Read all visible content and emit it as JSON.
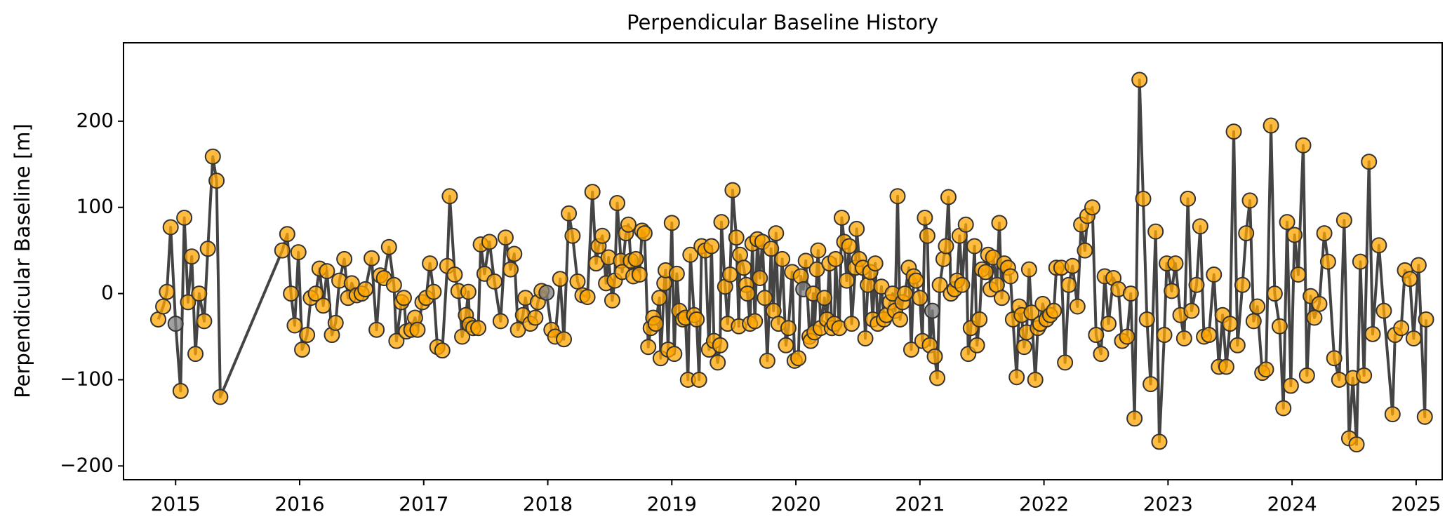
{
  "chart_data": {
    "type": "line",
    "title": "Perpendicular Baseline History",
    "ylabel": "Perpendicular Baseline [m]",
    "xlim": [
      2014.58,
      2025.21
    ],
    "ylim": [
      -216,
      291
    ],
    "xticks": [
      2015,
      2016,
      2017,
      2018,
      2019,
      2020,
      2021,
      2022,
      2023,
      2024,
      2025
    ],
    "yticks": [
      {
        "value": -200,
        "label": "−200"
      },
      {
        "value": -100,
        "label": "−100"
      },
      0,
      100,
      200
    ],
    "grid": false,
    "series": [
      {
        "line_color": "#444444",
        "marker_edge_color": "#333333",
        "x": [
          2014.86,
          2014.9,
          2014.93,
          2014.96,
          2015.0,
          2015.04,
          2015.07,
          2015.1,
          2015.13,
          2015.16,
          2015.19,
          2015.23,
          2015.26,
          2015.3,
          2015.33,
          2015.36,
          2015.86,
          2015.9,
          2015.93,
          2015.96,
          2015.99,
          2016.02,
          2016.06,
          2016.09,
          2016.13,
          2016.16,
          2016.19,
          2016.22,
          2016.26,
          2016.29,
          2016.32,
          2016.36,
          2016.39,
          2016.42,
          2016.46,
          2016.5,
          2016.53,
          2016.58,
          2016.62,
          2016.65,
          2016.68,
          2016.72,
          2016.76,
          2016.78,
          2016.82,
          2016.84,
          2016.86,
          2016.9,
          2016.93,
          2016.95,
          2016.99,
          2017.02,
          2017.05,
          2017.08,
          2017.11,
          2017.15,
          2017.19,
          2017.21,
          2017.25,
          2017.28,
          2017.31,
          2017.34,
          2017.36,
          2017.37,
          2017.4,
          2017.44,
          2017.46,
          2017.49,
          2017.53,
          2017.57,
          2017.62,
          2017.66,
          2017.7,
          2017.73,
          2017.76,
          2017.8,
          2017.82,
          2017.86,
          2017.9,
          2017.92,
          2017.95,
          2017.99,
          2018.03,
          2018.06,
          2018.1,
          2018.13,
          2018.17,
          2018.2,
          2018.24,
          2018.28,
          2018.32,
          2018.36,
          2018.39,
          2018.41,
          2018.44,
          2018.47,
          2018.49,
          2018.52,
          2018.54,
          2018.56,
          2018.59,
          2018.6,
          2018.63,
          2018.65,
          2018.67,
          2018.69,
          2018.71,
          2018.74,
          2018.76,
          2018.78,
          2018.81,
          2018.83,
          2018.85,
          2018.87,
          2018.9,
          2018.91,
          2018.94,
          2018.95,
          2018.97,
          2019.0,
          2019.02,
          2019.04,
          2019.06,
          2019.09,
          2019.11,
          2019.13,
          2019.15,
          2019.18,
          2019.2,
          2019.22,
          2019.24,
          2019.27,
          2019.3,
          2019.32,
          2019.34,
          2019.37,
          2019.39,
          2019.4,
          2019.43,
          2019.45,
          2019.47,
          2019.49,
          2019.52,
          2019.54,
          2019.55,
          2019.58,
          2019.6,
          2019.61,
          2019.63,
          2019.65,
          2019.67,
          2019.69,
          2019.71,
          2019.73,
          2019.75,
          2019.77,
          2019.8,
          2019.82,
          2019.84,
          2019.86,
          2019.89,
          2019.92,
          2019.94,
          2019.97,
          2019.99,
          2020.02,
          2020.04,
          2020.06,
          2020.08,
          2020.11,
          2020.12,
          2020.14,
          2020.15,
          2020.17,
          2020.18,
          2020.2,
          2020.23,
          2020.25,
          2020.27,
          2020.29,
          2020.31,
          2020.32,
          2020.35,
          2020.37,
          2020.39,
          2020.41,
          2020.43,
          2020.45,
          2020.48,
          2020.49,
          2020.51,
          2020.54,
          2020.56,
          2020.58,
          2020.6,
          2020.62,
          2020.64,
          2020.66,
          2020.69,
          2020.71,
          2020.73,
          2020.76,
          2020.78,
          2020.8,
          2020.82,
          2020.84,
          2020.86,
          2020.88,
          2020.91,
          2020.93,
          2020.95,
          2020.97,
          2021.0,
          2021.02,
          2021.04,
          2021.06,
          2021.08,
          2021.1,
          2021.12,
          2021.14,
          2021.16,
          2021.19,
          2021.21,
          2021.23,
          2021.25,
          2021.28,
          2021.3,
          2021.32,
          2021.34,
          2021.37,
          2021.39,
          2021.41,
          2021.44,
          2021.46,
          2021.48,
          2021.5,
          2021.53,
          2021.55,
          2021.57,
          2021.59,
          2021.62,
          2021.64,
          2021.66,
          2021.68,
          2021.71,
          2021.73,
          2021.75,
          2021.78,
          2021.8,
          2021.82,
          2021.84,
          2021.86,
          2021.88,
          2021.9,
          2021.93,
          2021.95,
          2021.97,
          2021.99,
          2022.02,
          2022.05,
          2022.08,
          2022.1,
          2022.14,
          2022.17,
          2022.2,
          2022.23,
          2022.27,
          2022.3,
          2022.33,
          2022.35,
          2022.39,
          2022.42,
          2022.46,
          2022.49,
          2022.52,
          2022.56,
          2022.6,
          2022.63,
          2022.67,
          2022.7,
          2022.73,
          2022.77,
          2022.8,
          2022.83,
          2022.86,
          2022.9,
          2022.93,
          2022.97,
          2022.99,
          2023.03,
          2023.06,
          2023.1,
          2023.13,
          2023.16,
          2023.19,
          2023.23,
          2023.26,
          2023.29,
          2023.33,
          2023.37,
          2023.41,
          2023.44,
          2023.47,
          2023.5,
          2023.53,
          2023.56,
          2023.6,
          2023.63,
          2023.66,
          2023.69,
          2023.72,
          2023.76,
          2023.79,
          2023.83,
          2023.86,
          2023.9,
          2023.93,
          2023.96,
          2023.99,
          2024.02,
          2024.05,
          2024.09,
          2024.12,
          2024.15,
          2024.18,
          2024.22,
          2024.26,
          2024.29,
          2024.34,
          2024.38,
          2024.42,
          2024.46,
          2024.49,
          2024.52,
          2024.55,
          2024.58,
          2024.62,
          2024.65,
          2024.7,
          2024.74,
          2024.81,
          2024.83,
          2024.88,
          2024.91,
          2024.95,
          2024.98,
          2025.02,
          2025.07,
          2025.08
        ],
        "values": [
          -30,
          -15,
          2,
          77,
          -35,
          -113,
          88,
          -10,
          43,
          -70,
          0,
          -32,
          52,
          159,
          131,
          -120,
          50,
          69,
          0,
          -37,
          48,
          -65,
          -48,
          -5,
          0,
          29,
          -14,
          26,
          -48,
          -34,
          15,
          40,
          -5,
          12,
          -2,
          0,
          5,
          41,
          -42,
          21,
          18,
          54,
          10,
          -55,
          -10,
          -5,
          -44,
          -42,
          -28,
          -42,
          -10,
          -5,
          35,
          2,
          -62,
          -66,
          32,
          113,
          22,
          3,
          -50,
          -25,
          2,
          -36,
          -40,
          -40,
          57,
          23,
          60,
          14,
          -32,
          65,
          28,
          46,
          -42,
          -25,
          -5,
          -35,
          -28,
          -10,
          3,
          1,
          -42,
          -50,
          17,
          -53,
          93,
          67,
          14,
          -2,
          -4,
          118,
          35,
          55,
          67,
          12,
          42,
          -8,
          15,
          105,
          38,
          25,
          70,
          80,
          38,
          20,
          40,
          22,
          73,
          70,
          -62,
          -40,
          -28,
          -35,
          -5,
          -75,
          12,
          27,
          -65,
          82,
          -70,
          23,
          -20,
          -30,
          -28,
          -100,
          45,
          -25,
          -30,
          -100,
          55,
          50,
          -65,
          55,
          -55,
          -80,
          -60,
          83,
          8,
          -35,
          22,
          120,
          65,
          -38,
          45,
          30,
          10,
          0,
          -35,
          58,
          -32,
          63,
          18,
          60,
          -5,
          -78,
          52,
          -20,
          70,
          -35,
          40,
          -60,
          -40,
          25,
          -78,
          -75,
          20,
          5,
          38,
          -50,
          -55,
          0,
          -45,
          28,
          50,
          -40,
          -5,
          -30,
          35,
          -40,
          -35,
          40,
          -40,
          88,
          60,
          15,
          55,
          -35,
          30,
          75,
          40,
          30,
          -52,
          10,
          25,
          -30,
          35,
          -35,
          8,
          -30,
          -25,
          -10,
          0,
          -20,
          113,
          -30,
          -10,
          0,
          30,
          -65,
          20,
          15,
          -5,
          -55,
          88,
          67,
          -60,
          -20,
          -73,
          -98,
          10,
          40,
          55,
          112,
          0,
          5,
          15,
          67,
          10,
          80,
          -70,
          -40,
          55,
          -60,
          -30,
          28,
          25,
          45,
          5,
          42,
          10,
          82,
          -5,
          35,
          30,
          20,
          -30,
          -97,
          -15,
          -25,
          -62,
          -45,
          28,
          -22,
          -100,
          -40,
          -35,
          -12,
          -30,
          -25,
          -20,
          30,
          30,
          -80,
          10,
          32,
          -15,
          80,
          50,
          90,
          100,
          -48,
          -70,
          20,
          -35,
          18,
          5,
          -55,
          -50,
          0,
          -145,
          248,
          110,
          -30,
          -105,
          72,
          -172,
          -48,
          35,
          3,
          35,
          -25,
          -52,
          110,
          -20,
          10,
          78,
          -50,
          -48,
          22,
          -85,
          -25,
          -85,
          -35,
          188,
          -60,
          10,
          70,
          108,
          -32,
          -15,
          -92,
          -88,
          195,
          0,
          -38,
          -133,
          83,
          -107,
          68,
          22,
          172,
          -95,
          -3,
          -28,
          -12,
          70,
          37,
          -75,
          -100,
          85,
          -168,
          -98,
          -175,
          37,
          -95,
          153,
          -47,
          56,
          -20,
          -140,
          -48,
          -40,
          27,
          17,
          -52,
          33,
          -143,
          -30
        ],
        "marker_colors": [
          "orange",
          "orange",
          "orange",
          "orange",
          "gray",
          "orange",
          "orange",
          "orange",
          "orange",
          "orange",
          "orange",
          "orange",
          "orange",
          "orange",
          "orange",
          "orange",
          "orange",
          "orange",
          "orange",
          "orange",
          "orange",
          "orange",
          "orange",
          "orange",
          "orange",
          "orange",
          "orange",
          "orange",
          "orange",
          "orange",
          "orange",
          "orange",
          "orange",
          "orange",
          "orange",
          "orange",
          "orange",
          "orange",
          "orange",
          "orange",
          "orange",
          "orange",
          "orange",
          "orange",
          "orange",
          "orange",
          "orange",
          "orange",
          "orange",
          "orange",
          "orange",
          "orange",
          "orange",
          "orange",
          "orange",
          "orange",
          "orange",
          "orange",
          "orange",
          "orange",
          "orange",
          "orange",
          "orange",
          "orange",
          "orange",
          "orange",
          "orange",
          "orange",
          "orange",
          "orange",
          "orange",
          "orange",
          "orange",
          "orange",
          "orange",
          "orange",
          "orange",
          "orange",
          "orange",
          "orange",
          "orange",
          "gray",
          "orange",
          "orange",
          "orange",
          "orange",
          "orange",
          "orange",
          "orange",
          "orange",
          "orange",
          "orange",
          "orange",
          "orange",
          "orange",
          "orange",
          "orange",
          "orange",
          "orange",
          "orange",
          "orange",
          "orange",
          "orange",
          "orange",
          "orange",
          "orange",
          "orange",
          "orange",
          "orange",
          "orange",
          "orange",
          "orange",
          "orange",
          "orange",
          "orange",
          "orange",
          "orange",
          "orange",
          "orange",
          "orange",
          "orange",
          "orange",
          "orange",
          "orange",
          "orange",
          "orange",
          "orange",
          "orange",
          "orange",
          "orange",
          "orange",
          "orange",
          "orange",
          "orange",
          "orange",
          "orange",
          "orange",
          "orange",
          "orange",
          "orange",
          "orange",
          "orange",
          "orange",
          "orange",
          "orange",
          "orange",
          "orange",
          "orange",
          "orange",
          "orange",
          "orange",
          "orange",
          "orange",
          "orange",
          "orange",
          "orange",
          "orange",
          "orange",
          "orange",
          "orange",
          "orange",
          "orange",
          "orange",
          "orange",
          "orange",
          "orange",
          "orange",
          "gray",
          "orange",
          "orange",
          "orange",
          "orange",
          "orange",
          "orange",
          "orange",
          "orange",
          "orange",
          "orange",
          "orange",
          "orange",
          "orange",
          "orange",
          "orange",
          "orange",
          "orange",
          "orange",
          "orange",
          "orange",
          "orange",
          "orange",
          "orange",
          "orange",
          "orange",
          "orange",
          "orange",
          "orange",
          "orange",
          "orange",
          "orange",
          "orange",
          "orange",
          "orange",
          "orange",
          "orange",
          "orange",
          "orange",
          "orange",
          "orange",
          "orange",
          "orange",
          "orange",
          "orange",
          "orange",
          "orange",
          "orange",
          "orange",
          "orange",
          "gray",
          "orange",
          "orange",
          "orange",
          "orange",
          "orange",
          "orange",
          "orange",
          "orange",
          "orange",
          "orange",
          "orange",
          "orange",
          "orange",
          "orange",
          "orange",
          "orange",
          "orange",
          "orange",
          "orange",
          "orange",
          "orange",
          "orange",
          "orange",
          "orange",
          "orange",
          "orange",
          "orange",
          "orange",
          "orange",
          "orange",
          "orange",
          "orange",
          "orange",
          "orange",
          "orange",
          "orange",
          "orange",
          "orange",
          "orange",
          "orange",
          "orange",
          "orange",
          "orange",
          "orange",
          "orange",
          "orange",
          "orange",
          "orange",
          "orange",
          "orange",
          "orange",
          "orange",
          "orange",
          "orange",
          "orange",
          "orange",
          "orange",
          "orange",
          "orange",
          "orange",
          "orange",
          "orange",
          "orange",
          "orange",
          "orange",
          "orange",
          "orange",
          "orange",
          "orange",
          "orange",
          "orange",
          "orange",
          "orange",
          "orange",
          "orange",
          "orange",
          "orange",
          "orange",
          "orange",
          "orange",
          "orange",
          "orange",
          "orange",
          "orange",
          "orange",
          "orange",
          "orange",
          "orange",
          "orange",
          "orange",
          "orange",
          "orange",
          "orange",
          "orange",
          "orange",
          "orange",
          "orange",
          "orange",
          "orange",
          "orange",
          "orange",
          "orange",
          "orange",
          "orange",
          "orange",
          "orange",
          "orange",
          "orange",
          "orange",
          "orange",
          "orange",
          "orange",
          "orange",
          "orange",
          "orange",
          "orange",
          "orange",
          "orange",
          "orange",
          "orange",
          "orange",
          "orange",
          "orange",
          "orange",
          "orange",
          "orange",
          "orange",
          "orange",
          "orange",
          "orange",
          "orange"
        ]
      }
    ]
  }
}
